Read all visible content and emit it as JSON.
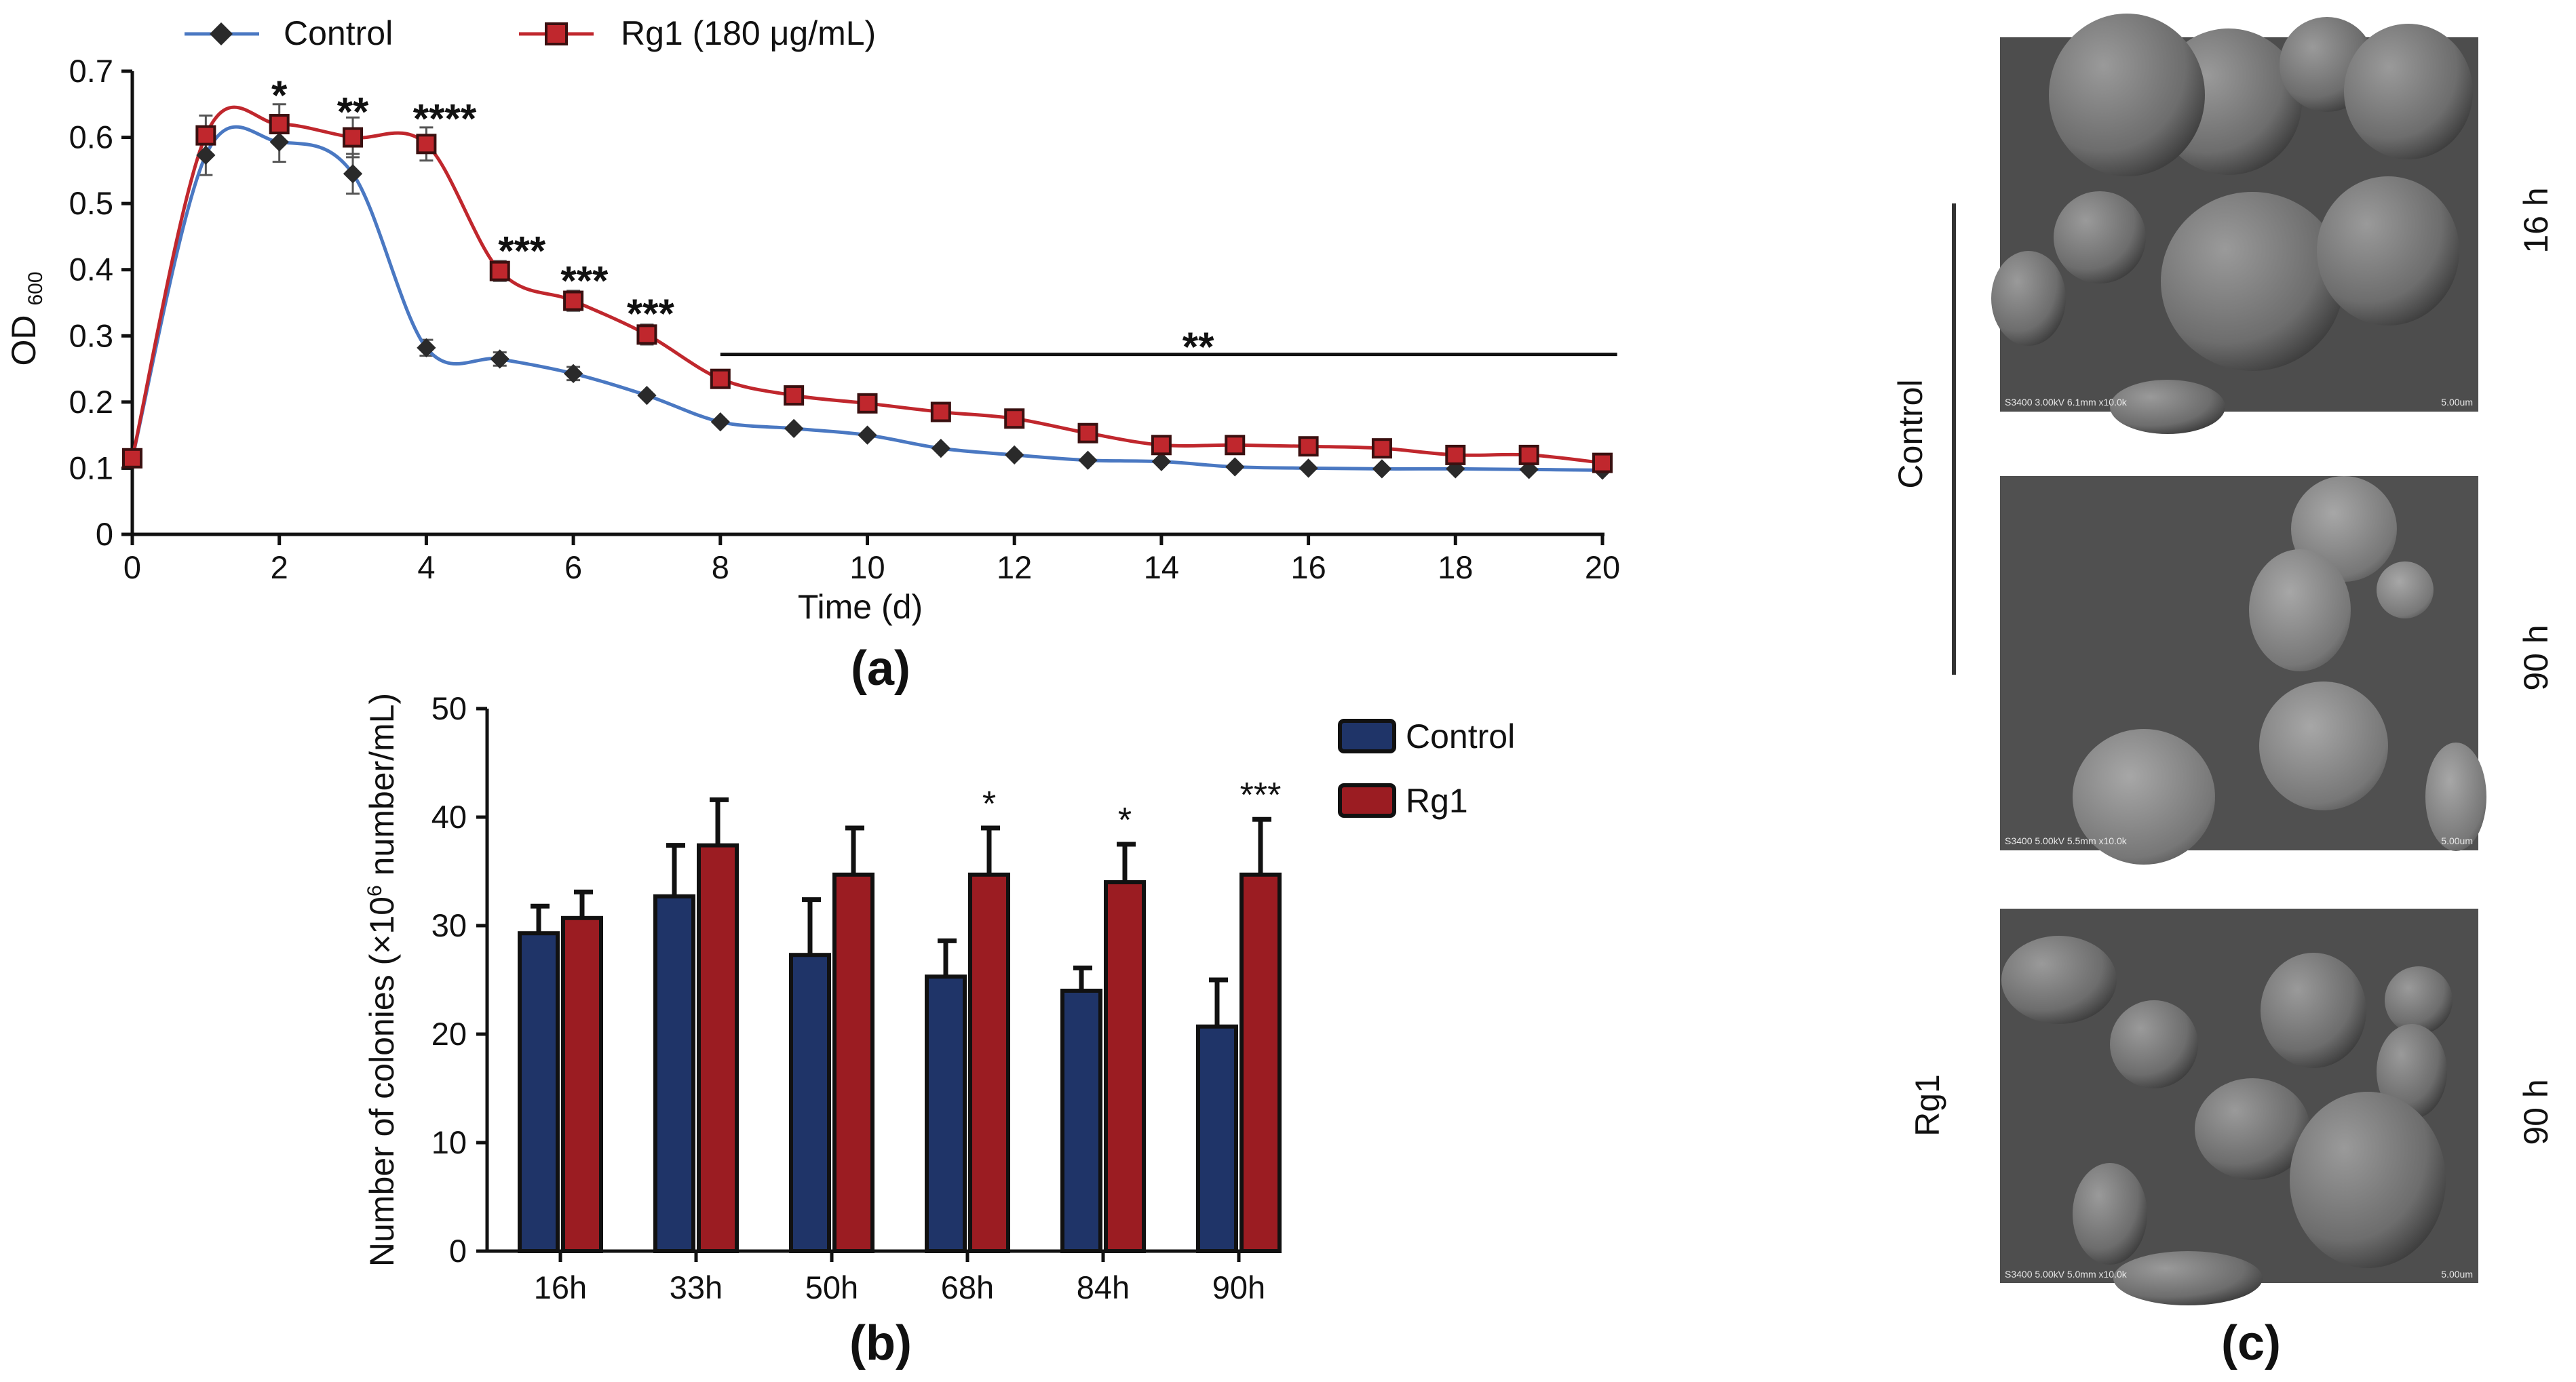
{
  "chart_data": [
    {
      "id": "a",
      "type": "line",
      "panel_label": "(a)",
      "xlabel": "Time (d)",
      "ylabel": "OD",
      "ylabel_sub": "600",
      "xlim": [
        0,
        20
      ],
      "ylim": [
        0,
        0.7
      ],
      "xticks": [
        0,
        2,
        4,
        6,
        8,
        10,
        12,
        14,
        16,
        18,
        20
      ],
      "xtick_labels": [
        "0",
        "2",
        "4",
        "6",
        "8",
        "10",
        "12",
        "14",
        "16",
        "18",
        "20"
      ],
      "yticks": [
        0,
        0.1,
        0.2,
        0.3,
        0.4,
        0.5,
        0.6,
        0.7
      ],
      "ytick_labels": [
        "0",
        "0.1",
        "0.2",
        "0.3",
        "0.4",
        "0.5",
        "0.6",
        "0.7"
      ],
      "legend_position": "top-left",
      "series": [
        {
          "name": "Control",
          "color": "#4a78c2",
          "marker": "diamond",
          "x": [
            0,
            1,
            2,
            3,
            4,
            5,
            6,
            7,
            8,
            9,
            10,
            11,
            12,
            13,
            14,
            15,
            16,
            17,
            18,
            19,
            20
          ],
          "values": [
            0.115,
            0.573,
            0.593,
            0.545,
            0.282,
            0.265,
            0.243,
            0.21,
            0.17,
            0.16,
            0.15,
            0.13,
            0.12,
            0.112,
            0.11,
            0.102,
            0.1,
            0.099,
            0.099,
            0.098,
            0.097
          ],
          "errors": [
            0.005,
            0.03,
            0.03,
            0.03,
            0.012,
            0.01,
            0.01,
            0.008,
            0.006,
            0.005,
            0.005,
            0.004,
            0.004,
            0.004,
            0.004,
            0.003,
            0.003,
            0.003,
            0.003,
            0.003,
            0.003
          ]
        },
        {
          "name": "Rg1 (180 μg/mL)",
          "color": "#c0272d",
          "marker": "square",
          "x": [
            0,
            1,
            2,
            3,
            4,
            5,
            6,
            7,
            8,
            9,
            10,
            11,
            12,
            13,
            14,
            15,
            16,
            17,
            18,
            19,
            20
          ],
          "values": [
            0.115,
            0.603,
            0.62,
            0.6,
            0.59,
            0.398,
            0.353,
            0.302,
            0.235,
            0.21,
            0.198,
            0.185,
            0.175,
            0.153,
            0.135,
            0.135,
            0.133,
            0.13,
            0.12,
            0.12,
            0.108
          ],
          "errors": [
            0.005,
            0.03,
            0.03,
            0.03,
            0.025,
            0.015,
            0.015,
            0.015,
            0.008,
            0.006,
            0.006,
            0.006,
            0.005,
            0.005,
            0.005,
            0.005,
            0.005,
            0.005,
            0.005,
            0.005,
            0.005
          ]
        }
      ],
      "annotations": [
        {
          "x": 2,
          "y": 0.665,
          "text": "*"
        },
        {
          "x": 3,
          "y": 0.64,
          "text": "**"
        },
        {
          "x": 4.25,
          "y": 0.63,
          "text": "****"
        },
        {
          "x": 5.3,
          "y": 0.43,
          "text": "***"
        },
        {
          "x": 6.15,
          "y": 0.385,
          "text": "***"
        },
        {
          "x": 7.05,
          "y": 0.335,
          "text": "***"
        },
        {
          "x": 14.5,
          "y": 0.285,
          "text": "**"
        }
      ],
      "bracket": {
        "x_start": 8,
        "x_end": 20.2,
        "y": 0.272
      }
    },
    {
      "id": "b",
      "type": "bar",
      "panel_label": "(b)",
      "xlabel": "",
      "ylabel": "Number of colonies (×10",
      "ylabel_sup": "6",
      "ylabel_tail": " number/mL)",
      "ylim": [
        0,
        50
      ],
      "yticks": [
        0,
        10,
        20,
        30,
        40,
        50
      ],
      "ytick_labels": [
        "0",
        "10",
        "20",
        "30",
        "40",
        "50"
      ],
      "categories": [
        "16h",
        "33h",
        "50h",
        "68h",
        "84h",
        "90h"
      ],
      "legend_position": "top-right",
      "series": [
        {
          "name": "Control",
          "color": "#1f3468",
          "values": [
            29.3,
            32.7,
            27.3,
            25.3,
            24.0,
            20.7
          ],
          "errors": [
            2.5,
            4.7,
            5.1,
            3.3,
            2.1,
            4.3
          ]
        },
        {
          "name": "Rg1",
          "color": "#9b1c22",
          "values": [
            30.7,
            37.4,
            34.7,
            34.7,
            34.0,
            34.7
          ],
          "errors": [
            2.4,
            4.2,
            4.3,
            4.3,
            3.5,
            5.1
          ]
        }
      ],
      "significance": [
        "",
        "",
        "",
        "*",
        "*",
        "***"
      ]
    }
  ],
  "panel_c": {
    "label": "(c)",
    "group_labels": [
      "Control",
      "Rg1"
    ],
    "image_labels": [
      "16 h",
      "90 h",
      "90 h"
    ],
    "captions": [
      {
        "left": "S3400 3.00kV 6.1mm x10.0k",
        "right": "5.00um"
      },
      {
        "left": "S3400 5.00kV 5.5mm x10.0k",
        "right": "5.00um"
      },
      {
        "left": "S3400 5.00kV 5.0mm x10.0k",
        "right": "5.00um"
      }
    ]
  }
}
